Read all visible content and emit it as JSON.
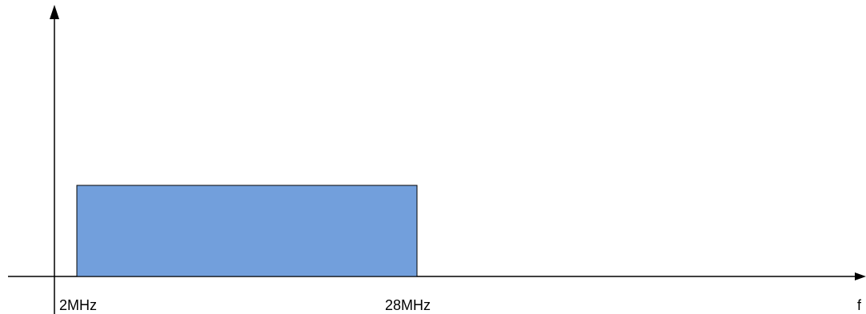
{
  "diagram": {
    "band_start_label": "2MHz",
    "band_end_label": "28MHz",
    "axis_label_x": "f",
    "band_fill_color": "#729fdc",
    "band_stroke_color": "#000000",
    "axis_color": "#000000"
  }
}
